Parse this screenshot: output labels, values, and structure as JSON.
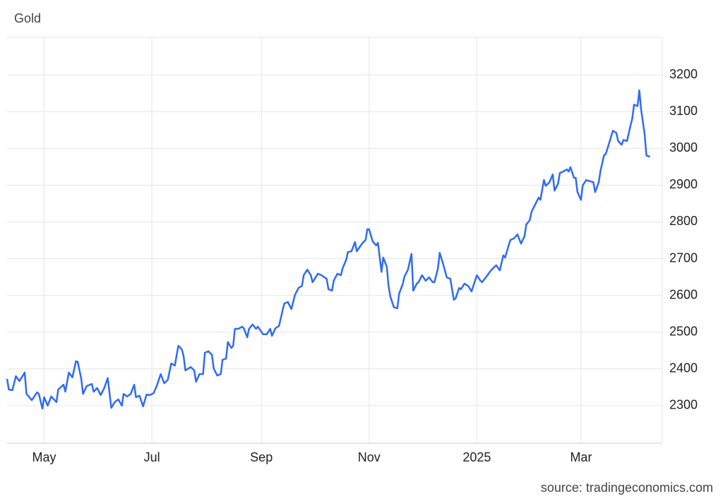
{
  "chart_data": {
    "type": "line",
    "title": "Gold",
    "source": "source: tradingeconomics.com",
    "x": [
      -21,
      -20,
      -18,
      -16,
      -14,
      -11,
      -10,
      -7,
      -4,
      -3,
      -1,
      0,
      2,
      4,
      7,
      8,
      11,
      12,
      14,
      16,
      18,
      19,
      21,
      22,
      24,
      27,
      28,
      30,
      32,
      34,
      36,
      38,
      40,
      42,
      44,
      45,
      47,
      49,
      51,
      52,
      54,
      56,
      58,
      60,
      62,
      64,
      66,
      68,
      70,
      72,
      74,
      76,
      78,
      79,
      80,
      83,
      85,
      86,
      88,
      90,
      91,
      93,
      95,
      96,
      98,
      100,
      101,
      103,
      104,
      106,
      107,
      108,
      110,
      112,
      113,
      115,
      116,
      118,
      120,
      121,
      123,
      124,
      126,
      128,
      129,
      131,
      133,
      135,
      136,
      138,
      140,
      142,
      144,
      146,
      147,
      149,
      151,
      152,
      155,
      157,
      160,
      161,
      163,
      164,
      166,
      168,
      169,
      171,
      172,
      174,
      176,
      177,
      180,
      182,
      183,
      184,
      186,
      188,
      189,
      191,
      192,
      194,
      195,
      196,
      198,
      200,
      201,
      203,
      204,
      206,
      208,
      209,
      211,
      212,
      214,
      216,
      218,
      220,
      221,
      223,
      224,
      226,
      228,
      230,
      232,
      233,
      235,
      236,
      238,
      240,
      242,
      243,
      245,
      247,
      248,
      251,
      253,
      255,
      256,
      258,
      260,
      261,
      263,
      264,
      266,
      268,
      270,
      272,
      273,
      275,
      276,
      278,
      280,
      281,
      283,
      284,
      286,
      288,
      289,
      291,
      292,
      294,
      296,
      297,
      298,
      300,
      301,
      302,
      304,
      305,
      307,
      308,
      311,
      312,
      314,
      315,
      317,
      318,
      320,
      322,
      324,
      325,
      327,
      328,
      330,
      332,
      333,
      334,
      336,
      337,
      338,
      340,
      341,
      343
    ],
    "series": [
      {
        "name": "Gold",
        "color": "#2f6bf5",
        "values": [
          2373,
          2344,
          2342,
          2380,
          2367,
          2390,
          2332,
          2315,
          2336,
          2332,
          2292,
          2323,
          2300,
          2325,
          2310,
          2344,
          2357,
          2338,
          2390,
          2377,
          2421,
          2419,
          2373,
          2332,
          2353,
          2359,
          2338,
          2348,
          2329,
          2348,
          2375,
          2294,
          2310,
          2317,
          2300,
          2332,
          2325,
          2332,
          2357,
          2323,
          2327,
          2298,
          2330,
          2329,
          2334,
          2357,
          2386,
          2361,
          2370,
          2415,
          2409,
          2463,
          2453,
          2434,
          2396,
          2405,
          2396,
          2365,
          2386,
          2386,
          2444,
          2448,
          2438,
          2401,
          2382,
          2386,
          2425,
          2428,
          2473,
          2457,
          2463,
          2509,
          2509,
          2515,
          2511,
          2486,
          2509,
          2521,
          2509,
          2515,
          2501,
          2494,
          2494,
          2509,
          2490,
          2511,
          2517,
          2559,
          2578,
          2582,
          2563,
          2601,
          2620,
          2626,
          2655,
          2670,
          2655,
          2636,
          2659,
          2655,
          2645,
          2617,
          2613,
          2640,
          2659,
          2655,
          2674,
          2697,
          2718,
          2720,
          2745,
          2720,
          2741,
          2751,
          2780,
          2780,
          2747,
          2736,
          2743,
          2664,
          2703,
          2678,
          2626,
          2597,
          2568,
          2565,
          2605,
          2630,
          2651,
          2670,
          2713,
          2613,
          2632,
          2636,
          2655,
          2640,
          2649,
          2636,
          2636,
          2674,
          2716,
          2684,
          2649,
          2645,
          2588,
          2592,
          2620,
          2617,
          2632,
          2626,
          2611,
          2626,
          2655,
          2640,
          2636,
          2655,
          2668,
          2678,
          2682,
          2668,
          2709,
          2703,
          2736,
          2751,
          2755,
          2766,
          2741,
          2761,
          2793,
          2805,
          2828,
          2847,
          2866,
          2860,
          2914,
          2898,
          2907,
          2929,
          2885,
          2904,
          2933,
          2937,
          2943,
          2937,
          2949,
          2920,
          2920,
          2881,
          2860,
          2900,
          2914,
          2912,
          2908,
          2881,
          2908,
          2939,
          2981,
          2985,
          3016,
          3048,
          3042,
          3020,
          3010,
          3023,
          3020,
          3062,
          3081,
          3119,
          3115,
          3158,
          3106,
          3039,
          2981,
          2977
        ]
      }
    ],
    "xlim": [
      -21,
      350
    ],
    "xticks": [
      {
        "value": 0,
        "label": "May"
      },
      {
        "value": 61,
        "label": "Jul"
      },
      {
        "value": 123,
        "label": "Sep"
      },
      {
        "value": 184,
        "label": "Nov"
      },
      {
        "value": 245,
        "label": "2025"
      },
      {
        "value": 304,
        "label": "Mar"
      }
    ],
    "ylim": [
      2198,
      3302
    ],
    "yticks": [
      2300,
      2400,
      2500,
      2600,
      2700,
      2800,
      2900,
      3000,
      3100,
      3200
    ],
    "grid": true
  }
}
